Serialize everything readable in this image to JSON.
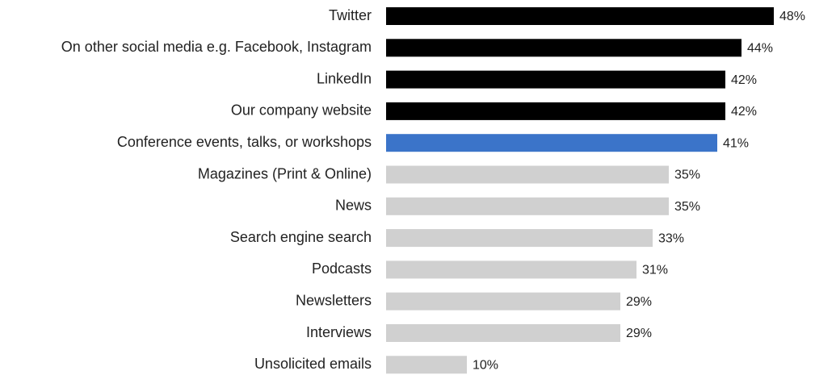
{
  "chart_data": {
    "type": "bar",
    "orientation": "horizontal",
    "title": "",
    "xlabel": "",
    "ylabel": "",
    "categories": [
      "Twitter",
      "On other social media e.g. Facebook, Instagram",
      "LinkedIn",
      "Our company website",
      "Conference events, talks, or workshops",
      "Magazines (Print & Online)",
      "News",
      "Search engine search",
      "Podcasts",
      "Newsletters",
      "Interviews",
      "Unsolicited emails"
    ],
    "values": [
      48,
      44,
      42,
      42,
      41,
      35,
      35,
      33,
      31,
      29,
      29,
      10
    ],
    "value_labels": [
      "48%",
      "44%",
      "42%",
      "42%",
      "41%",
      "35%",
      "35%",
      "33%",
      "31%",
      "29%",
      "29%",
      "10%"
    ],
    "unit": "%",
    "bar_colors": [
      "#000000",
      "#000000",
      "#000000",
      "#000000",
      "#3b74c9",
      "#d0d0d0",
      "#d0d0d0",
      "#d0d0d0",
      "#d0d0d0",
      "#d0d0d0",
      "#d0d0d0",
      "#d0d0d0"
    ],
    "xlim": [
      0,
      48
    ],
    "grid": false,
    "legend": "none"
  }
}
